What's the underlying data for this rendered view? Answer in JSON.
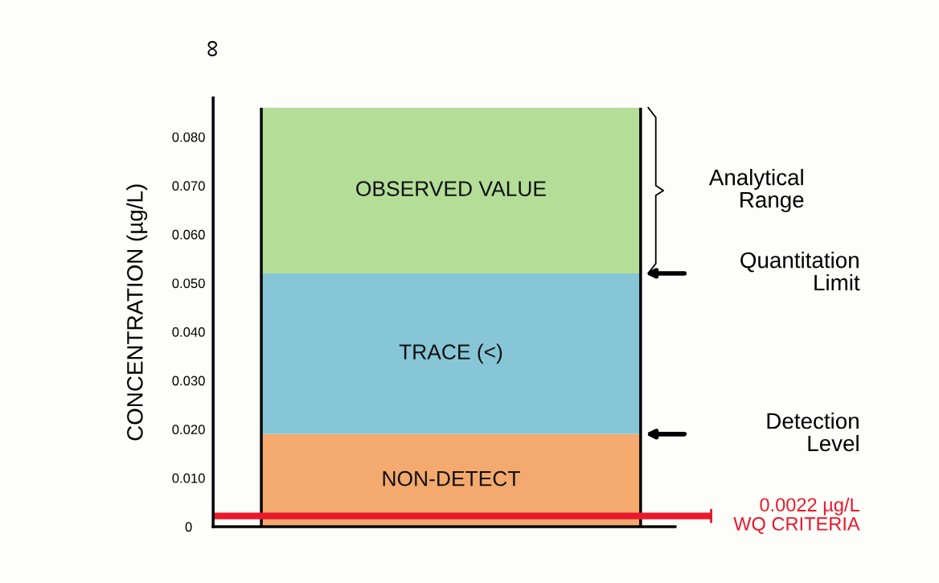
{
  "chart_data": {
    "type": "bar",
    "stacked": true,
    "ylabel": "CONCENTRATION (µg/L)",
    "categories": [
      null
    ],
    "series": [
      {
        "name": "NON-DETECT",
        "color": "#f4a96e",
        "values": [
          0.019
        ]
      },
      {
        "name": "TRACE (<)",
        "color": "#86c6d6",
        "values": [
          0.033
        ]
      },
      {
        "name": "OBSERVED VALUE",
        "color": "#b4de98",
        "values": [
          0.034
        ]
      }
    ],
    "ylim": [
      0,
      0.088
    ],
    "yticks": [
      0,
      {
        "value": 0.01,
        "label": "0.010"
      },
      {
        "value": 0.02,
        "label": "0.020"
      },
      {
        "value": 0.03,
        "label": "0.030"
      },
      {
        "value": 0.04,
        "label": "0.040"
      },
      {
        "value": 0.05,
        "label": "0.050"
      },
      {
        "value": 0.06,
        "label": "0.060"
      },
      {
        "value": 0.07,
        "label": "0.070"
      },
      {
        "value": 0.08,
        "label": "0.080"
      }
    ],
    "tick_labels": "y",
    "grid": false,
    "legend": false,
    "ref_lines": [
      {
        "axis": "y",
        "value": 0.0022,
        "label": "0.0022 µg/L\nWQ CRITERIA",
        "color": "#e8192c"
      }
    ],
    "annotations": [
      "Detection\nLevel",
      "Quantitation\nLimit",
      "Analytical\nRange",
      "∞"
    ]
  }
}
